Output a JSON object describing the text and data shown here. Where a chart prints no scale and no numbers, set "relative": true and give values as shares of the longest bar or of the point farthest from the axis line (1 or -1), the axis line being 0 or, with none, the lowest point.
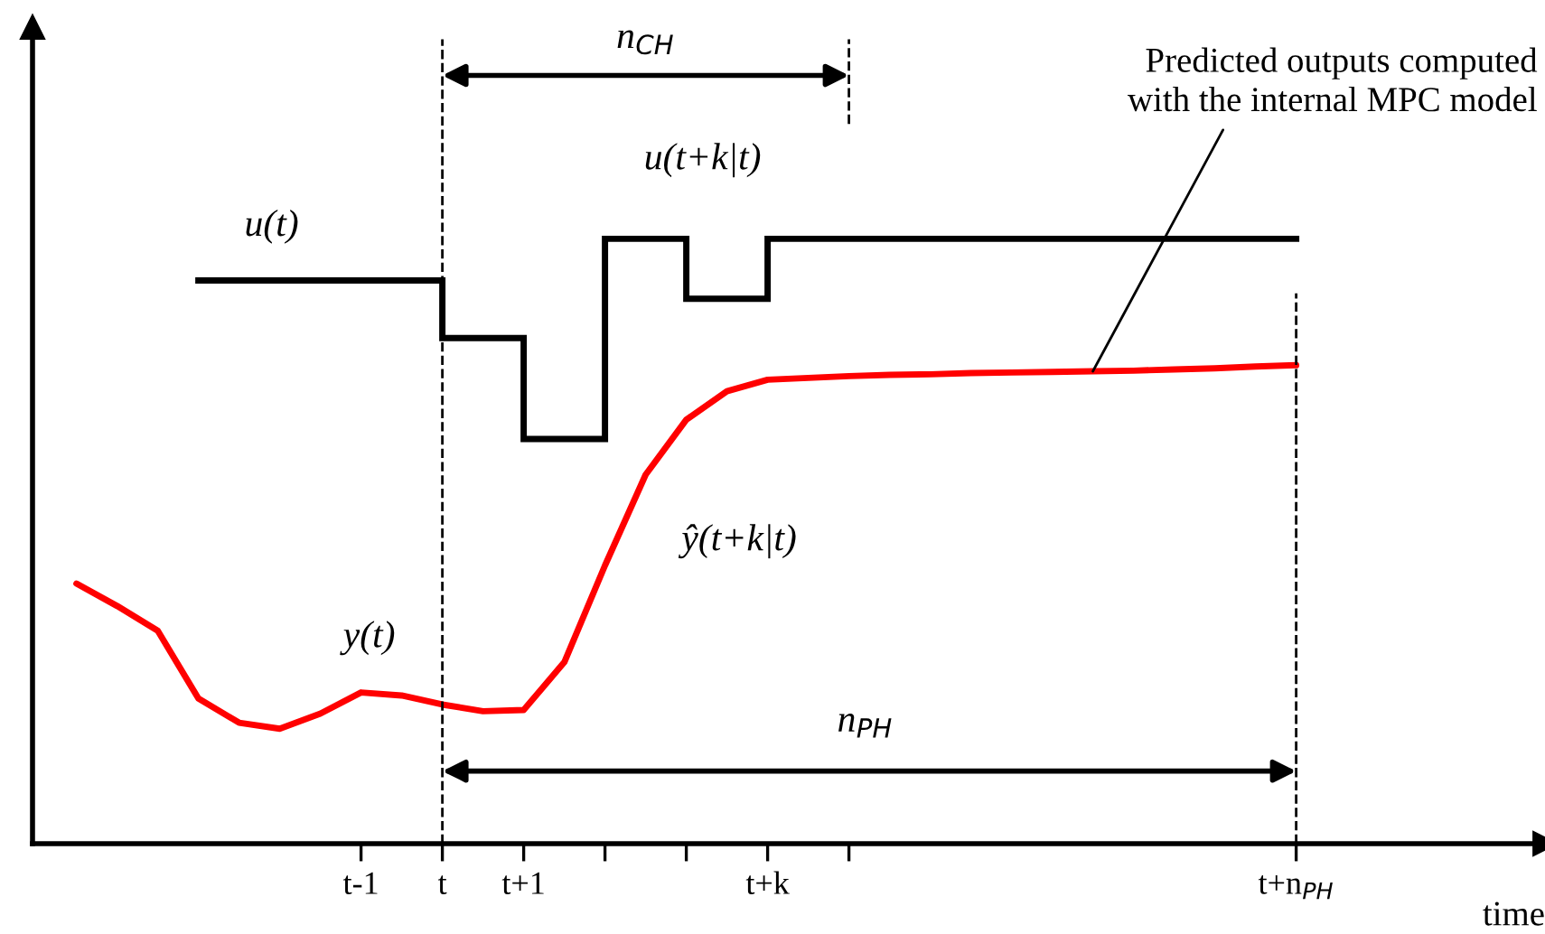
{
  "chart_data": {
    "type": "line",
    "relative": true,
    "xlabel": "time",
    "categories": [
      null,
      null,
      null,
      null,
      null,
      null,
      null,
      null,
      "t-1",
      null,
      "t",
      null,
      "t+1",
      null,
      null,
      null,
      null,
      null,
      "t+k",
      null,
      null,
      null,
      null,
      null,
      null,
      null,
      null,
      null,
      null,
      null,
      null,
      "t+n$_{PH}$",
      null,
      null,
      null,
      null,
      null,
      null
    ],
    "tick_labels": "x",
    "grid": false,
    "series": [
      {
        "type": "step",
        "color": "#000000",
        "values": [
          null,
          null,
          null,
          null,
          0.931,
          0.931,
          0.931,
          0.931,
          0.931,
          0.931,
          0.836,
          0.836,
          0.669,
          0.669,
          1,
          1,
          0.901,
          0.901,
          1,
          1,
          1,
          1,
          1,
          1,
          1,
          1,
          1,
          1,
          1,
          1,
          1,
          1,
          null,
          null,
          null,
          null,
          null,
          null
        ]
      },
      {
        "color": "#ff0000",
        "values": [
          null,
          0.43,
          0.393,
          0.352,
          0.24,
          0.2,
          0.19,
          0.215,
          0.25,
          0.245,
          0.23,
          0.219,
          0.221,
          0.3,
          0.46,
          0.61,
          0.701,
          0.748,
          0.767,
          0.77,
          0.773,
          0.775,
          0.776,
          0.778,
          0.779,
          0.78,
          0.781,
          0.782,
          0.784,
          0.786,
          0.789,
          0.791,
          null,
          null,
          null,
          null,
          null,
          null
        ]
      }
    ],
    "ref_lines": [
      {
        "axis": "x",
        "value": "t",
        "line_style": "dashed"
      },
      {
        "axis": "x",
        "value": "t+n$_{PH}$",
        "line_style": "dashed"
      }
    ],
    "annotations": [
      "u(t)",
      "u(t+k|t)",
      "y(t)",
      "ŷ(t+k|t)",
      "n$_{CH}$",
      "n$_{PH}$",
      "Predicted outputs computed\nwith the internal MPC model"
    ]
  }
}
